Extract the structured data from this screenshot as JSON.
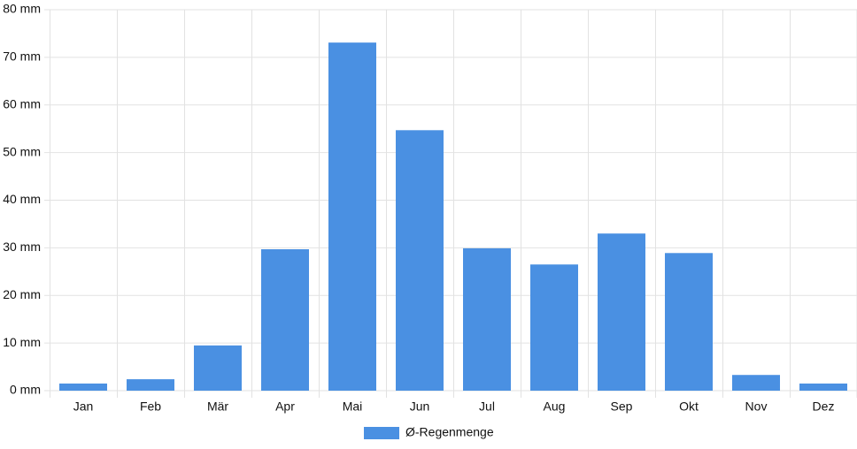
{
  "chart_data": {
    "type": "bar",
    "categories": [
      "Jan",
      "Feb",
      "Mär",
      "Apr",
      "Mai",
      "Jun",
      "Jul",
      "Aug",
      "Sep",
      "Okt",
      "Nov",
      "Dez"
    ],
    "series": [
      {
        "name": "Ø-Regenmenge",
        "color": "#4a90e2",
        "values": [
          1.5,
          2.4,
          9.5,
          29.7,
          73.1,
          54.7,
          29.9,
          26.5,
          33.0,
          28.9,
          3.3,
          1.5
        ]
      }
    ],
    "ylim": [
      0,
      80
    ],
    "yticks": [
      {
        "value": 0,
        "label": "0 mm"
      },
      {
        "value": 10,
        "label": "10 mm"
      },
      {
        "value": 20,
        "label": "20 mm"
      },
      {
        "value": 30,
        "label": "30 mm"
      },
      {
        "value": 40,
        "label": "40 mm"
      },
      {
        "value": 50,
        "label": "50 mm"
      },
      {
        "value": 60,
        "label": "60 mm"
      },
      {
        "value": 70,
        "label": "70 mm"
      },
      {
        "value": 80,
        "label": "80 mm"
      }
    ],
    "grid": true,
    "legend": "bottom"
  }
}
